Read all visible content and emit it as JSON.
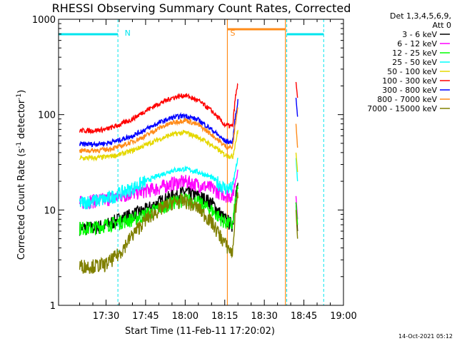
{
  "chart_data": {
    "type": "line",
    "title": "RHESSI Observing Summary Count Rates, Corrected",
    "xlabel": "Start Time (11-Feb-11 17:20:02)",
    "ylabel_main": "Corrected Count Rate (s",
    "ylabel_sup1": "-1",
    "ylabel_mid": " detector",
    "ylabel_sup2": "-1",
    "ylabel_end": ")",
    "y_scale": "log",
    "ylim": [
      1,
      1000
    ],
    "xlim_minutes": [
      -8.0,
      100.0
    ],
    "x_ticks": [
      {
        "label": "17:30",
        "t": 10
      },
      {
        "label": "17:45",
        "t": 25
      },
      {
        "label": "18:00",
        "t": 40
      },
      {
        "label": "18:15",
        "t": 55
      },
      {
        "label": "18:30",
        "t": 70
      },
      {
        "label": "18:45",
        "t": 85
      },
      {
        "label": "19:00",
        "t": 100
      }
    ],
    "y_ticks": [
      {
        "label": "1",
        "v": 1
      },
      {
        "label": "10",
        "v": 10
      },
      {
        "label": "100",
        "v": 100
      },
      {
        "label": "1000",
        "v": 1000
      }
    ],
    "legend_header": [
      "Det 1,3,4,5,6,9,",
      "Att 0"
    ],
    "legend_placement": "right",
    "annotations": [
      {
        "text": "N",
        "t": 16.0,
        "color": "#00e5ee"
      },
      {
        "text": "S",
        "t": 56.0,
        "color": "#ff8c1a"
      }
    ],
    "night_marks": [
      {
        "t": -8.0
      },
      {
        "t": 14.5
      },
      {
        "t": 78.5
      },
      {
        "t": 92.5
      }
    ],
    "saa_marks": [
      {
        "t": 56.0
      },
      {
        "t": 78.0
      }
    ],
    "series": [
      {
        "name": "3 - 6 keV",
        "color": "#000000",
        "x": [
          0,
          5,
          10,
          15,
          20,
          25,
          30,
          35,
          40,
          45,
          50,
          55,
          58,
          59,
          60,
          82,
          82.6
        ],
        "y": [
          6.5,
          6.5,
          7,
          8,
          9,
          10,
          12,
          14,
          15.5,
          14,
          12,
          8,
          7,
          14,
          18,
          12,
          6
        ]
      },
      {
        "name": "6 - 12 keV",
        "color": "#ff00ff",
        "x": [
          0,
          5,
          10,
          15,
          20,
          25,
          30,
          35,
          40,
          45,
          50,
          55,
          58,
          59,
          60,
          82,
          82.6
        ],
        "y": [
          12,
          12.5,
          13,
          14,
          15,
          16,
          17,
          19,
          20,
          18.5,
          17,
          14.5,
          14,
          20,
          26,
          14,
          8
        ]
      },
      {
        "name": "12 - 25 keV",
        "color": "#00ff00",
        "x": [
          0,
          5,
          10,
          15,
          20,
          25,
          30,
          35,
          40,
          45,
          50,
          55,
          58,
          59,
          60,
          82,
          82.6
        ],
        "y": [
          6.5,
          6.5,
          7,
          7.5,
          8,
          9,
          10.5,
          12,
          13,
          12,
          10,
          7.5,
          7,
          12,
          16,
          12,
          7
        ]
      },
      {
        "name": "25 - 50 keV",
        "color": "#00ffff",
        "x": [
          0,
          5,
          10,
          15,
          20,
          25,
          30,
          35,
          40,
          45,
          50,
          55,
          58,
          59,
          60,
          82,
          82.6
        ],
        "y": [
          12,
          12.5,
          13,
          15,
          17,
          20,
          23,
          26,
          27,
          25,
          22,
          17,
          17,
          26,
          34,
          35,
          20
        ]
      },
      {
        "name": "50 - 100 keV",
        "color": "#e5d800",
        "x": [
          0,
          5,
          10,
          15,
          20,
          25,
          30,
          35,
          40,
          45,
          50,
          55,
          58,
          59,
          60,
          82,
          82.6
        ],
        "y": [
          35,
          35,
          36,
          38,
          42,
          48,
          55,
          62,
          65,
          58,
          48,
          38,
          36,
          50,
          68,
          40,
          25
        ]
      },
      {
        "name": "100 - 300 keV",
        "color": "#ff0000",
        "x": [
          0,
          5,
          10,
          15,
          20,
          25,
          30,
          35,
          40,
          45,
          50,
          55,
          58,
          59,
          60,
          82,
          82.6
        ],
        "y": [
          68,
          68,
          70,
          78,
          90,
          110,
          130,
          150,
          160,
          140,
          110,
          78,
          75,
          150,
          210,
          220,
          150
        ]
      },
      {
        "name": "300 - 800 keV",
        "color": "#0000ff",
        "x": [
          0,
          5,
          10,
          15,
          20,
          25,
          30,
          35,
          40,
          45,
          50,
          55,
          58,
          59,
          60,
          82,
          82.6
        ],
        "y": [
          49,
          49,
          50,
          54,
          60,
          70,
          82,
          93,
          98,
          88,
          70,
          53,
          51,
          95,
          140,
          150,
          95
        ]
      },
      {
        "name": "800 - 7000 keV",
        "color": "#ff8c1a",
        "x": [
          0,
          5,
          10,
          15,
          20,
          25,
          30,
          35,
          40,
          45,
          50,
          55,
          58,
          59,
          60,
          82,
          82.6
        ],
        "y": [
          42,
          42,
          43,
          46,
          52,
          60,
          72,
          82,
          88,
          78,
          62,
          47,
          45,
          80,
          120,
          80,
          45
        ]
      },
      {
        "name": "7000 - 15000 keV",
        "color": "#808000",
        "x": [
          0,
          5,
          10,
          15,
          20,
          25,
          30,
          35,
          40,
          45,
          50,
          55,
          58,
          59,
          60,
          82,
          82.6
        ],
        "y": [
          2.6,
          2.6,
          2.7,
          3.5,
          5.5,
          8,
          10,
          12,
          12.5,
          10.5,
          7.5,
          4.5,
          3.5,
          10,
          15,
          10,
          5
        ]
      }
    ]
  },
  "footer": {
    "timestamp": "14-Oct-2021 05:12"
  }
}
